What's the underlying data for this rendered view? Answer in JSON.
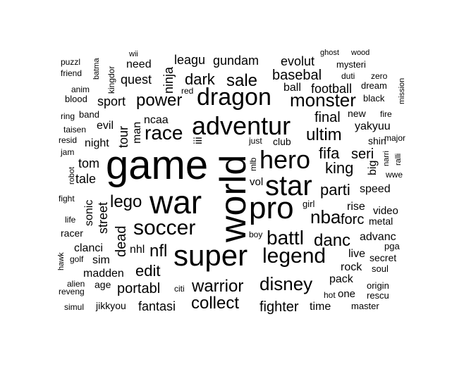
{
  "words": [
    {
      "text": "world",
      "rotated": true
    },
    {
      "text": "game"
    },
    {
      "text": "war"
    },
    {
      "text": "super"
    },
    {
      "text": "pro"
    },
    {
      "text": "star"
    },
    {
      "text": "hero"
    },
    {
      "text": "adventur"
    },
    {
      "text": "dragon"
    },
    {
      "text": "soccer"
    },
    {
      "text": "legend"
    },
    {
      "text": "race"
    },
    {
      "text": "battl"
    },
    {
      "text": "disney"
    },
    {
      "text": "warrior"
    },
    {
      "text": "monster"
    },
    {
      "text": "nba"
    },
    {
      "text": "collect"
    },
    {
      "text": "lego"
    },
    {
      "text": "power"
    },
    {
      "text": "sale"
    },
    {
      "text": "dark"
    },
    {
      "text": "edit"
    },
    {
      "text": "nfl"
    },
    {
      "text": "danc"
    },
    {
      "text": "ultim"
    },
    {
      "text": "king"
    },
    {
      "text": "parti"
    },
    {
      "text": "fifa"
    },
    {
      "text": "basebal"
    },
    {
      "text": "football"
    },
    {
      "text": "portabl"
    },
    {
      "text": "fighter"
    },
    {
      "text": "final"
    },
    {
      "text": "forc"
    },
    {
      "text": "seri"
    },
    {
      "text": "evolut"
    },
    {
      "text": "gundam"
    },
    {
      "text": "leagu"
    },
    {
      "text": "fantasi"
    },
    {
      "text": "madden"
    },
    {
      "text": "quest"
    },
    {
      "text": "sport"
    },
    {
      "text": "tour",
      "rotated": true
    },
    {
      "text": "ninja",
      "rotated": true
    },
    {
      "text": "dead",
      "rotated": true
    },
    {
      "text": "street",
      "rotated": true
    },
    {
      "text": "sonic",
      "rotated": true
    },
    {
      "text": "tale"
    },
    {
      "text": "tom"
    },
    {
      "text": "night"
    },
    {
      "text": "evil"
    },
    {
      "text": "man",
      "rotated": true
    },
    {
      "text": "ncaa"
    },
    {
      "text": "nhl"
    },
    {
      "text": "clanci"
    },
    {
      "text": "sim"
    },
    {
      "text": "speed"
    },
    {
      "text": "rise"
    },
    {
      "text": "video"
    },
    {
      "text": "yakyuu"
    },
    {
      "text": "advanc"
    },
    {
      "text": "live"
    },
    {
      "text": "rock"
    },
    {
      "text": "pack"
    },
    {
      "text": "time"
    },
    {
      "text": "one"
    },
    {
      "text": "ball"
    },
    {
      "text": "need"
    },
    {
      "text": "big",
      "rotated": true
    },
    {
      "text": "shin"
    },
    {
      "text": "new"
    },
    {
      "text": "metal"
    },
    {
      "text": "secret"
    },
    {
      "text": "master"
    },
    {
      "text": "origin"
    },
    {
      "text": "rescu"
    },
    {
      "text": "soul"
    },
    {
      "text": "pga"
    },
    {
      "text": "vol"
    },
    {
      "text": "girl"
    },
    {
      "text": "club"
    },
    {
      "text": "jikkyou"
    },
    {
      "text": "age"
    },
    {
      "text": "citi"
    },
    {
      "text": "hot"
    },
    {
      "text": "boy"
    },
    {
      "text": "mlb",
      "rotated": true
    },
    {
      "text": "iii",
      "rotated": true
    },
    {
      "text": "just"
    },
    {
      "text": "red"
    },
    {
      "text": "ghost"
    },
    {
      "text": "wood"
    },
    {
      "text": "wii"
    },
    {
      "text": "mysteri"
    },
    {
      "text": "duti"
    },
    {
      "text": "zero"
    },
    {
      "text": "dream"
    },
    {
      "text": "black"
    },
    {
      "text": "mission",
      "rotated": true
    },
    {
      "text": "fire"
    },
    {
      "text": "major"
    },
    {
      "text": "narri",
      "rotated": true
    },
    {
      "text": "ralli",
      "rotated": true
    },
    {
      "text": "wwe"
    },
    {
      "text": "puzzl"
    },
    {
      "text": "friend"
    },
    {
      "text": "batma",
      "rotated": true
    },
    {
      "text": "kingdor",
      "rotated": true
    },
    {
      "text": "anim"
    },
    {
      "text": "blood"
    },
    {
      "text": "ring"
    },
    {
      "text": "band"
    },
    {
      "text": "taisen"
    },
    {
      "text": "resid"
    },
    {
      "text": "jam"
    },
    {
      "text": "robot",
      "rotated": true
    },
    {
      "text": "fight"
    },
    {
      "text": "life"
    },
    {
      "text": "racer"
    },
    {
      "text": "hawk",
      "rotated": true
    },
    {
      "text": "golf"
    },
    {
      "text": "alien"
    },
    {
      "text": "reveng"
    },
    {
      "text": "simul"
    }
  ]
}
